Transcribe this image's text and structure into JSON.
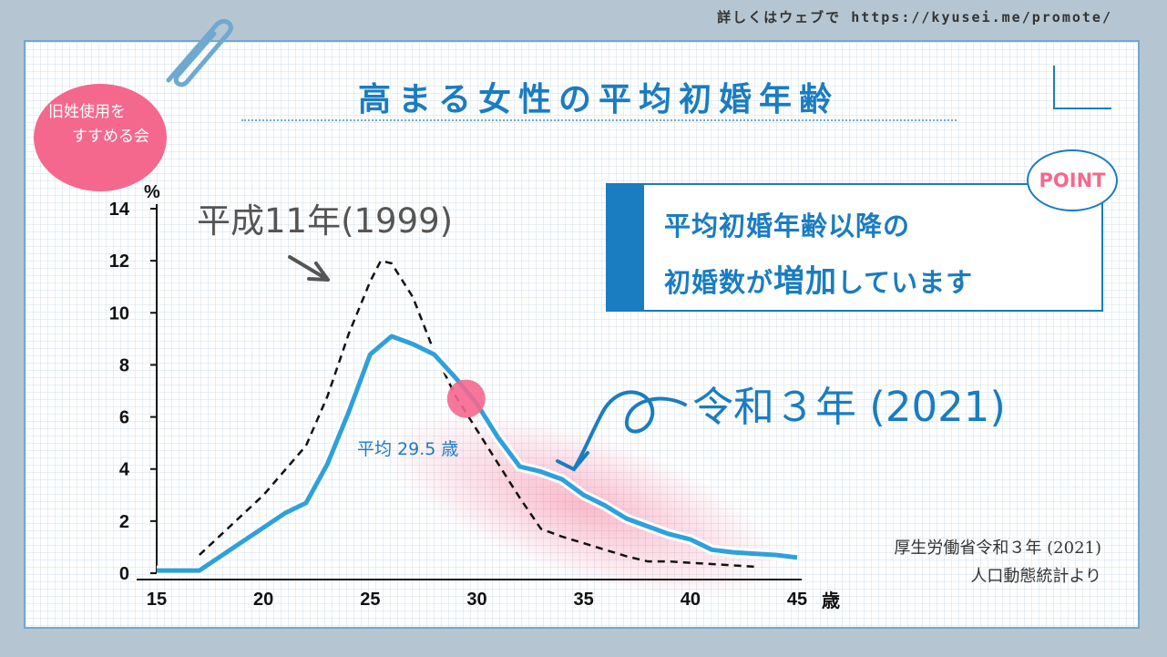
{
  "header": {
    "url_text": "詳しくはウェブで https://kyusei.me/promote/",
    "title": "高まる女性の平均初婚年齢"
  },
  "badge": {
    "line1": "旧姓使用を",
    "line2": "すすめる会"
  },
  "point": {
    "bubble": "POINT",
    "line1": "平均初婚年齢以降の",
    "line2_a": "初婚数が",
    "line2_b": "増加",
    "line2_c": "しています"
  },
  "source": {
    "line1": "厚生労働省令和３年 (2021)",
    "line2": "人口動態統計より"
  },
  "colors": {
    "accent": "#1a7cc1",
    "pink": "#f5688e",
    "series_2021": "#2fa0dc",
    "series_1999": "#111111"
  },
  "chart_data": {
    "type": "line",
    "ylabel": "%",
    "xlabel": "歳",
    "xlim": [
      15,
      45
    ],
    "ylim": [
      0,
      14
    ],
    "x_ticks": [
      15,
      20,
      25,
      30,
      35,
      40,
      45
    ],
    "y_ticks": [
      0,
      2,
      4,
      6,
      8,
      10,
      12,
      14
    ],
    "grid": false,
    "series": [
      {
        "name": "令和３年 (2021)",
        "style": "solid",
        "x": [
          15,
          17,
          19,
          21,
          22,
          23,
          24,
          25,
          26,
          27,
          28,
          29,
          30,
          31,
          32,
          33,
          34,
          35,
          36,
          37,
          38,
          39,
          40,
          41,
          42,
          43,
          44,
          45
        ],
        "y": [
          0.1,
          0.1,
          1.2,
          2.3,
          2.7,
          4.2,
          6.2,
          8.4,
          9.1,
          8.8,
          8.4,
          7.5,
          6.5,
          5.2,
          4.1,
          3.9,
          3.6,
          3.0,
          2.6,
          2.1,
          1.8,
          1.5,
          1.3,
          0.9,
          0.8,
          0.75,
          0.7,
          0.6
        ]
      },
      {
        "name": "平成11年(1999)",
        "style": "dashed",
        "x": [
          17,
          20,
          22,
          23,
          24,
          25,
          25.5,
          26,
          27,
          28,
          29,
          30,
          31,
          32,
          33,
          34,
          35,
          36,
          37,
          38,
          39,
          40,
          41,
          42,
          43
        ],
        "y": [
          0.7,
          3.0,
          4.9,
          6.8,
          9.2,
          11.2,
          12.0,
          11.9,
          10.6,
          8.5,
          6.8,
          5.5,
          4.2,
          2.9,
          1.7,
          1.4,
          1.15,
          0.9,
          0.65,
          0.45,
          0.45,
          0.4,
          0.35,
          0.3,
          0.25
        ]
      }
    ],
    "annotations": [
      {
        "text": "平成11年(1999)",
        "target": "dashed series peak"
      },
      {
        "text": "令和３年 (2021)",
        "target": "solid series"
      },
      {
        "text": "平均 29.5 歳",
        "x": 29.5,
        "y": 8.4
      }
    ],
    "mean_age_marker": {
      "x": 29.5,
      "y": 6.7
    }
  }
}
